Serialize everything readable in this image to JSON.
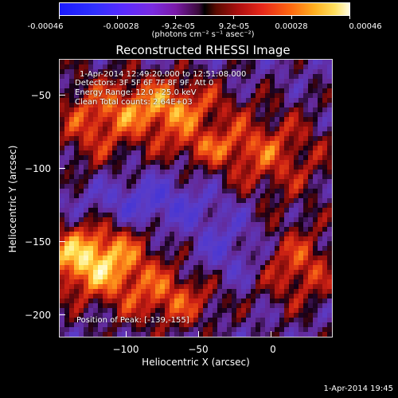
{
  "colorbar": {
    "tick_labels": [
      "-0.00046",
      "-0.00028",
      "-9.2e-05",
      "9.2e-05",
      "0.00028",
      "0.00046"
    ],
    "unit": "(photons cm⁻² s⁻¹ asec⁻²)"
  },
  "title": "Reconstructed RHESSI Image",
  "annotations": {
    "time_range": "1-Apr-2014 12:49:20.000 to 12:51:08.000",
    "detectors": "Detectors: 3F 5F 6F 7F 8F 9F, Att 0",
    "energy": "Energy Range: 12.0 - 25.0 keV",
    "clean": "Clean     Total counts: 2.64E+03",
    "peak": "Position of Peak: [-139,-155]"
  },
  "axes": {
    "xlabel": "Heliocentric X (arcsec)",
    "ylabel": "Heliocentric Y (arcsec)",
    "xticks": [
      "−100",
      "−50",
      "0"
    ],
    "yticks": [
      "−50",
      "−100",
      "−150",
      "−200"
    ],
    "xlim": [
      -146,
      42
    ],
    "ylim": [
      -218,
      -26
    ]
  },
  "footer": {
    "timestamp": "1-Apr-2014 19:45"
  }
}
